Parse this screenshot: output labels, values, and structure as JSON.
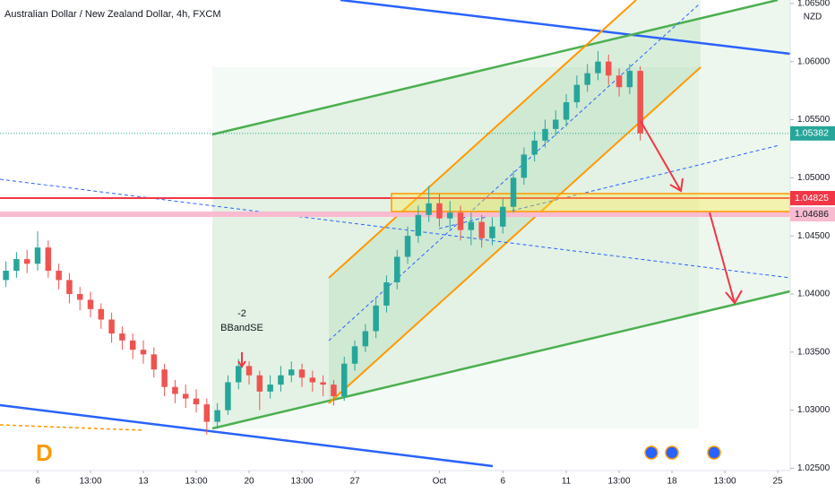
{
  "chart_data": {
    "type": "candlestick",
    "title": "Australian Dollar / New Zealand Dollar, 4h, FXCM",
    "currency": "NZD",
    "logo": "D",
    "annotations": [
      "-2",
      "BBandSE"
    ],
    "up_color": "#26a69a",
    "down_color": "#ef5350",
    "x": [
      -1.5,
      -1,
      -0.5,
      0,
      0.5,
      1,
      1.5,
      2,
      2.5,
      3,
      3.5,
      4,
      4.5,
      5,
      5.5,
      6,
      6.5,
      7,
      7.5,
      8,
      8.5,
      9,
      9.5,
      10,
      10.5,
      11,
      11.5,
      12,
      12.5,
      13,
      13.5,
      14,
      14.5,
      15,
      15.5,
      16,
      16.5,
      17,
      17.5,
      18,
      18.5,
      19,
      19.5,
      20,
      20.5,
      21,
      21.5,
      22,
      22.5,
      23,
      23.5,
      24,
      24.5,
      25,
      25.5,
      26,
      26.5,
      27,
      27.5,
      28,
      28.5
    ],
    "candles": [
      [
        1.0412,
        1.0428,
        1.0406,
        1.042
      ],
      [
        1.042,
        1.0436,
        1.0414,
        1.043
      ],
      [
        1.043,
        1.0438,
        1.0418,
        1.0426
      ],
      [
        1.0426,
        1.0454,
        1.042,
        1.044
      ],
      [
        1.044,
        1.0446,
        1.0414,
        1.042
      ],
      [
        1.042,
        1.0426,
        1.0404,
        1.0412
      ],
      [
        1.0412,
        1.0418,
        1.0392,
        1.04
      ],
      [
        1.04,
        1.0406,
        1.0386,
        1.0395
      ],
      [
        1.0395,
        1.0402,
        1.038,
        1.0387
      ],
      [
        1.0387,
        1.0392,
        1.037,
        1.0378
      ],
      [
        1.0378,
        1.0384,
        1.0358,
        1.0366
      ],
      [
        1.0366,
        1.0372,
        1.0352,
        1.036
      ],
      [
        1.036,
        1.0366,
        1.0344,
        1.0352
      ],
      [
        1.0352,
        1.036,
        1.034,
        1.0348
      ],
      [
        1.0348,
        1.0354,
        1.0328,
        1.0335
      ],
      [
        1.0335,
        1.034,
        1.0312,
        1.032
      ],
      [
        1.032,
        1.0326,
        1.0306,
        1.0314
      ],
      [
        1.0314,
        1.0322,
        1.0302,
        1.031
      ],
      [
        1.031,
        1.0318,
        1.0298,
        1.0305
      ],
      [
        1.0305,
        1.031,
        1.0279,
        1.029
      ],
      [
        1.029,
        1.0306,
        1.0284,
        1.03
      ],
      [
        1.03,
        1.033,
        1.0296,
        1.0324
      ],
      [
        1.0324,
        1.0344,
        1.0318,
        1.0338
      ],
      [
        1.0338,
        1.0342,
        1.0322,
        1.033
      ],
      [
        1.033,
        1.0334,
        1.03,
        1.0316
      ],
      [
        1.0316,
        1.033,
        1.031,
        1.0322
      ],
      [
        1.0322,
        1.0338,
        1.0316,
        1.033
      ],
      [
        1.033,
        1.0342,
        1.0324,
        1.0335
      ],
      [
        1.0335,
        1.034,
        1.032,
        1.0328
      ],
      [
        1.0328,
        1.0334,
        1.0316,
        1.0324
      ],
      [
        1.0324,
        1.033,
        1.0312,
        1.0322
      ],
      [
        1.0322,
        1.0326,
        1.0304,
        1.0312
      ],
      [
        1.0312,
        1.0346,
        1.0308,
        1.034
      ],
      [
        1.034,
        1.036,
        1.0334,
        1.0355
      ],
      [
        1.0355,
        1.0374,
        1.035,
        1.0368
      ],
      [
        1.0368,
        1.0396,
        1.0362,
        1.039
      ],
      [
        1.039,
        1.0416,
        1.0384,
        1.041
      ],
      [
        1.041,
        1.0438,
        1.0404,
        1.0432
      ],
      [
        1.0432,
        1.0458,
        1.0426,
        1.045
      ],
      [
        1.045,
        1.0476,
        1.0444,
        1.0468
      ],
      [
        1.0468,
        1.0493,
        1.0462,
        1.0478
      ],
      [
        1.0478,
        1.0486,
        1.0458,
        1.0465
      ],
      [
        1.0465,
        1.048,
        1.0456,
        1.047
      ],
      [
        1.047,
        1.0476,
        1.0446,
        1.0455
      ],
      [
        1.0455,
        1.047,
        1.0442,
        1.0462
      ],
      [
        1.0462,
        1.0468,
        1.044,
        1.0448
      ],
      [
        1.0448,
        1.0466,
        1.0442,
        1.0458
      ],
      [
        1.0458,
        1.0482,
        1.0452,
        1.0475
      ],
      [
        1.0475,
        1.0506,
        1.047,
        1.05
      ],
      [
        1.05,
        1.0526,
        1.0494,
        1.052
      ],
      [
        1.052,
        1.054,
        1.0514,
        1.0532
      ],
      [
        1.0532,
        1.055,
        1.0526,
        1.0542
      ],
      [
        1.0542,
        1.0558,
        1.0536,
        1.055
      ],
      [
        1.055,
        1.0572,
        1.0544,
        1.0565
      ],
      [
        1.0565,
        1.0588,
        1.056,
        1.058
      ],
      [
        1.058,
        1.0598,
        1.0574,
        1.059
      ],
      [
        1.059,
        1.0609,
        1.0584,
        1.06
      ],
      [
        1.06,
        1.0606,
        1.058,
        1.0588
      ],
      [
        1.0588,
        1.0594,
        1.057,
        1.0578
      ],
      [
        1.0578,
        1.0598,
        1.0572,
        1.0592
      ],
      [
        1.0592,
        1.0596,
        1.0532,
        1.05382
      ]
    ],
    "xlim": [
      -1.78,
      35.59
    ],
    "xticks": [
      {
        "value": 0,
        "label": "6"
      },
      {
        "value": 2.5,
        "label": "13:00"
      },
      {
        "value": 5,
        "label": "13"
      },
      {
        "value": 7.5,
        "label": "13:00"
      },
      {
        "value": 10,
        "label": "20"
      },
      {
        "value": 12.5,
        "label": "13:00"
      },
      {
        "value": 15,
        "label": "27"
      },
      {
        "value": 19,
        "label": "Oct"
      },
      {
        "value": 22,
        "label": "6"
      },
      {
        "value": 25,
        "label": "11"
      },
      {
        "value": 27.5,
        "label": "13:00"
      },
      {
        "value": 30,
        "label": "18"
      },
      {
        "value": 32.5,
        "label": "13:00"
      },
      {
        "value": 35,
        "label": "25"
      }
    ],
    "ylim": [
      1.0248,
      1.0653
    ],
    "yticks": [
      {
        "value": 1.025,
        "label": "1.02500"
      },
      {
        "value": 1.03,
        "label": "1.03000"
      },
      {
        "value": 1.035,
        "label": "1.03500"
      },
      {
        "value": 1.04,
        "label": "1.04000"
      },
      {
        "value": 1.045,
        "label": "1.04500"
      },
      {
        "value": 1.05,
        "label": "1.05000"
      },
      {
        "value": 1.055,
        "label": "1.05500"
      },
      {
        "value": 1.06,
        "label": "1.06000"
      },
      {
        "value": 1.065,
        "label": "1.06500"
      }
    ],
    "price_labels": [
      {
        "value": 1.05382,
        "color": "#26a69a"
      },
      {
        "value": 1.04825,
        "color": "#f23645"
      },
      {
        "value": 1.04686,
        "color": "#f8bbd0"
      }
    ]
  }
}
